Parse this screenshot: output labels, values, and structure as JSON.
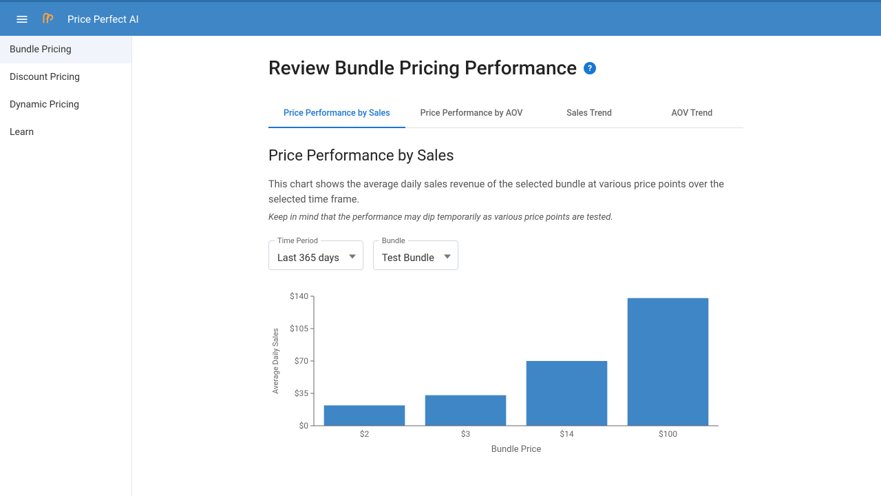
{
  "app": {
    "title": "Price Perfect AI"
  },
  "sidebar": {
    "items": [
      {
        "label": "Bundle Pricing",
        "active": true
      },
      {
        "label": "Discount Pricing",
        "active": false
      },
      {
        "label": "Dynamic Pricing",
        "active": false
      },
      {
        "label": "Learn",
        "active": false
      }
    ]
  },
  "page": {
    "title": "Review Bundle Pricing Performance"
  },
  "tabs": [
    {
      "label": "Price Performance by Sales",
      "active": true
    },
    {
      "label": "Price Performance by AOV",
      "active": false
    },
    {
      "label": "Sales Trend",
      "active": false
    },
    {
      "label": "AOV Trend",
      "active": false
    }
  ],
  "section": {
    "title": "Price Performance by Sales",
    "description": "This chart shows the average daily sales revenue of the selected bundle at various price points over the selected time frame.",
    "note": "Keep in mind that the performance may dip temporarily as various price points are tested."
  },
  "filters": {
    "time_period": {
      "label": "Time Period",
      "value": "Last 365 days"
    },
    "bundle": {
      "label": "Bundle",
      "value": "Test Bundle"
    }
  },
  "chart": {
    "type": "bar",
    "x_label": "Bundle Price",
    "y_label": "Average Daily Sales",
    "categories": [
      "$2",
      "$3",
      "$14",
      "$100"
    ],
    "values": [
      22,
      33,
      70,
      138
    ],
    "y_ticks": [
      0,
      35,
      70,
      105,
      140
    ],
    "y_tick_labels": [
      "$0",
      "$35",
      "$70",
      "$105",
      "$140"
    ],
    "ylim": [
      0,
      140
    ],
    "bar_color": "#3f86c7",
    "axis_color": "#666666",
    "tick_color": "#666666",
    "text_color": "#666666",
    "label_fontsize": 12,
    "tick_fontsize": 12,
    "background_color": "#ffffff",
    "bar_width_ratio": 0.8
  }
}
